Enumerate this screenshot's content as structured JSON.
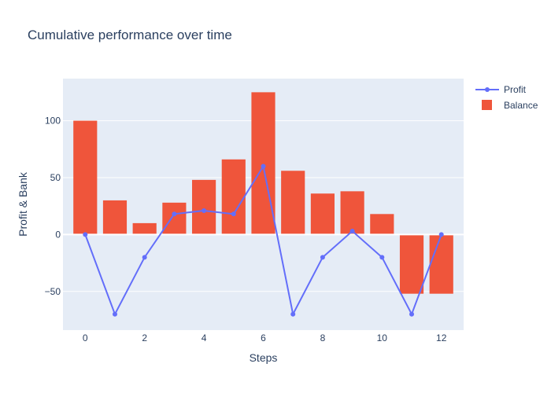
{
  "colors": {
    "plot_background": "#e5ecf6",
    "grid": "#ffffff",
    "text": "#2a3f5f",
    "profit_line": "#636efa",
    "balance_bar": "#ef553b"
  },
  "chart_data": {
    "type": "bar",
    "title": "Cumulative performance over time",
    "xlabel": "Steps",
    "ylabel": "Profit & Bank",
    "x": [
      0,
      1,
      2,
      3,
      4,
      5,
      6,
      7,
      8,
      9,
      10,
      11,
      12
    ],
    "xlim": [
      -0.75,
      12.75
    ],
    "ylim": [
      -84,
      137
    ],
    "x_ticks": [
      0,
      2,
      4,
      6,
      8,
      10,
      12
    ],
    "y_ticks": [
      -50,
      0,
      50,
      100
    ],
    "grid": true,
    "legend_position": "top-right",
    "series": [
      {
        "name": "Profit",
        "type": "line",
        "values": [
          0,
          -70,
          -20,
          18,
          21,
          18,
          60,
          -70,
          -20,
          3,
          -20,
          -70,
          0
        ]
      },
      {
        "name": "Balance",
        "type": "bar",
        "values": [
          100,
          30,
          10,
          28,
          48,
          66,
          125,
          56,
          36,
          38,
          18,
          -52,
          -52
        ]
      }
    ]
  }
}
